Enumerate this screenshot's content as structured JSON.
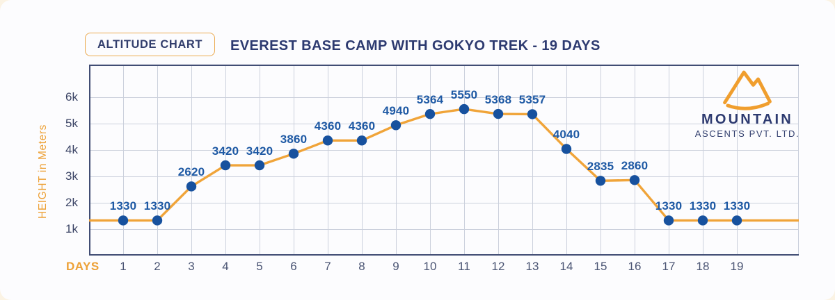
{
  "header": {
    "badge_label": "ALTITUDE CHART",
    "title": "EVEREST BASE CAMP WITH GOKYO TREK - 19 DAYS"
  },
  "logo": {
    "icon": "mountain-icon",
    "name": "MOUNTAIN",
    "subtitle": "ASCENTS PVT. LTD."
  },
  "chart_data": {
    "type": "line",
    "title": "EVEREST BASE CAMP WITH GOKYO TREK - 19 DAYS",
    "xlabel": "DAYS",
    "ylabel": "HEIGHT in Meters",
    "x": [
      1,
      2,
      3,
      4,
      5,
      6,
      7,
      8,
      9,
      10,
      11,
      12,
      13,
      14,
      15,
      16,
      17,
      18,
      19
    ],
    "values": [
      1330,
      1330,
      2620,
      3420,
      3420,
      3860,
      4360,
      4360,
      4940,
      5364,
      5550,
      5368,
      5357,
      4040,
      2835,
      2860,
      1330,
      1330,
      1330
    ],
    "yticks": [
      {
        "value": 1000,
        "label": "1k"
      },
      {
        "value": 2000,
        "label": "2k"
      },
      {
        "value": 3000,
        "label": "3k"
      },
      {
        "value": 4000,
        "label": "4k"
      },
      {
        "value": 5000,
        "label": "5k"
      },
      {
        "value": 6000,
        "label": "6k"
      }
    ],
    "ylim": [
      0,
      7240
    ],
    "grid": true,
    "line_extends_to_plot_edges": true,
    "legend": null
  },
  "colors": {
    "accent_orange": "#EDA137",
    "line_orange": "#F0A439",
    "navy_title": "#2D3A70",
    "data_label_blue": "#1E59A4",
    "point_blue": "#17519E",
    "gridline": "#CBD0DC",
    "axis_border": "#414D74",
    "x_tick": "#4A5473",
    "y_tick": "#3C4566"
  }
}
